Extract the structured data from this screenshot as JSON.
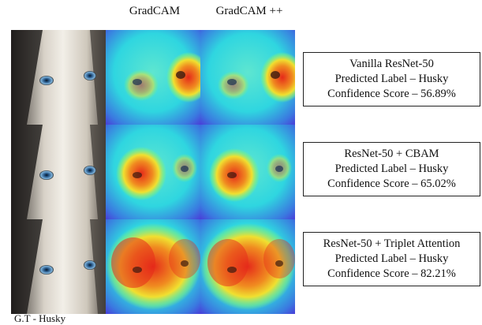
{
  "headers": {
    "col2": "GradCAM",
    "col3": "GradCAM ++"
  },
  "rows": [
    {
      "model": "Vanilla ResNet-50",
      "predicted": "Predicted Label – Husky",
      "confidence": "Confidence Score – 56.89%"
    },
    {
      "model": "ResNet-50 + CBAM",
      "predicted": "Predicted Label – Husky",
      "confidence": "Confidence Score – 65.02%"
    },
    {
      "model": "ResNet-50 + Triplet Attention",
      "predicted": "Predicted Label – Husky",
      "confidence": "Confidence Score – 82.21%"
    }
  ],
  "bottom_caption": "G.T - Husky",
  "heatmap_colors": {
    "cool": "#2fd6e0",
    "mid": "#7ff080",
    "warm": "#f0e030",
    "hot": "#e52a1a",
    "outer": "#4a3ad8"
  }
}
